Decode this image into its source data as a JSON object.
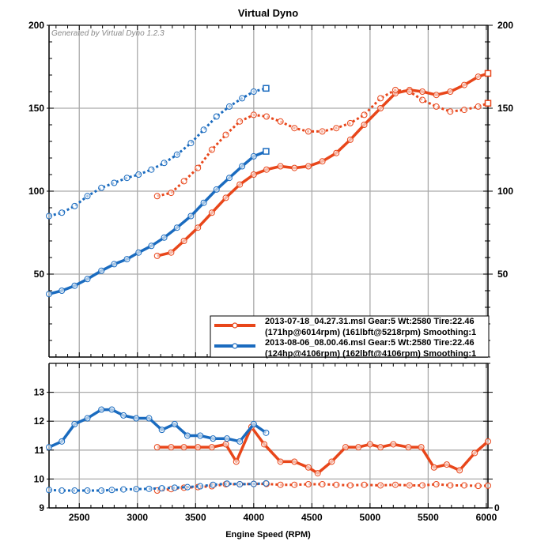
{
  "chart_data": [
    {
      "type": "line",
      "title": "Virtual Dyno",
      "watermark": "Generated by Virtual Dyno 1.2.3",
      "xlabel": "Engine Speed (RPM)",
      "ylabel": "",
      "xlim": [
        2240,
        6014
      ],
      "ylim": [
        0,
        200
      ],
      "yticks": [
        50,
        100,
        150,
        200
      ],
      "xticks": [
        2500,
        3000,
        3500,
        4000,
        4500,
        5000,
        5500,
        6000
      ],
      "grid": true,
      "legend_position": "bottom-right",
      "legend": [
        {
          "line1": "2013-07-18_04.27.31.msl Gear:5 Wt:2580 Tire:22.46",
          "line2": "(171hp@6014rpm) (161lbft@5218rpm) Smoothing:1",
          "color": "#e8461a"
        },
        {
          "line1": "2013-08-06_08.00.46.msl Gear:5 Wt:2580 Tire:22.46",
          "line2": "(124hp@4106rpm) (162lbft@4106rpm) Smoothing:1",
          "color": "#1a6bbf"
        }
      ],
      "series": [
        {
          "name": "run1-hp",
          "color": "#e8461a",
          "style": "solid",
          "x": [
            3170,
            3290,
            3400,
            3520,
            3640,
            3760,
            3880,
            4000,
            4110,
            4230,
            4350,
            4470,
            4590,
            4710,
            4830,
            4950,
            5090,
            5218,
            5340,
            5450,
            5570,
            5690,
            5810,
            5930,
            6014
          ],
          "y": [
            61,
            63,
            70,
            78,
            87,
            96,
            104,
            110,
            113,
            115,
            114,
            115,
            118,
            123,
            131,
            140,
            150,
            159,
            161,
            160,
            158,
            160,
            164,
            169,
            171
          ]
        },
        {
          "name": "run1-torque",
          "color": "#e8461a",
          "style": "dotted",
          "x": [
            3170,
            3290,
            3400,
            3520,
            3640,
            3760,
            3880,
            4000,
            4110,
            4230,
            4350,
            4470,
            4590,
            4710,
            4830,
            4950,
            5090,
            5218,
            5340,
            5450,
            5570,
            5690,
            5810,
            5930,
            6014
          ],
          "y": [
            97,
            99,
            106,
            114,
            125,
            134,
            142,
            146,
            145,
            142,
            138,
            136,
            136,
            138,
            141,
            146,
            156,
            161,
            160,
            155,
            151,
            148,
            149,
            151,
            153
          ]
        },
        {
          "name": "run2-hp",
          "color": "#1a6bbf",
          "style": "solid",
          "x": [
            2240,
            2350,
            2460,
            2570,
            2690,
            2800,
            2910,
            3010,
            3120,
            3230,
            3340,
            3460,
            3570,
            3680,
            3790,
            3900,
            4000,
            4106
          ],
          "y": [
            38,
            40,
            43,
            47,
            52,
            56,
            59,
            63,
            67,
            72,
            78,
            85,
            93,
            101,
            108,
            115,
            121,
            124
          ]
        },
        {
          "name": "run2-torque",
          "color": "#1a6bbf",
          "style": "dotted",
          "x": [
            2240,
            2350,
            2460,
            2570,
            2690,
            2800,
            2910,
            3010,
            3120,
            3230,
            3340,
            3460,
            3570,
            3680,
            3790,
            3900,
            4000,
            4106
          ],
          "y": [
            85,
            87,
            91,
            97,
            102,
            105,
            108,
            110,
            113,
            117,
            122,
            129,
            137,
            145,
            151,
            156,
            160,
            162
          ]
        }
      ]
    },
    {
      "type": "line",
      "xlabel": "Engine Speed (RPM)",
      "xlim": [
        2240,
        6014
      ],
      "ylim": [
        9,
        14
      ],
      "yticks": [
        9,
        10,
        11,
        12,
        13
      ],
      "right_axis_label": "0",
      "xticks": [
        2500,
        3000,
        3500,
        4000,
        4500,
        5000,
        5500,
        6000
      ],
      "grid": true,
      "series": [
        {
          "name": "run1-afr",
          "color": "#e8461a",
          "style": "solid",
          "x": [
            3170,
            3290,
            3400,
            3520,
            3640,
            3760,
            3850,
            3980,
            4090,
            4230,
            4350,
            4470,
            4550,
            4670,
            4790,
            4900,
            5000,
            5090,
            5200,
            5330,
            5440,
            5550,
            5660,
            5770,
            5900,
            6014
          ],
          "y": [
            11.1,
            11.1,
            11.1,
            11.1,
            11.1,
            11.2,
            10.6,
            11.8,
            11.2,
            10.6,
            10.6,
            10.4,
            10.2,
            10.6,
            11.1,
            11.1,
            11.2,
            11.1,
            11.2,
            11.1,
            11.1,
            10.4,
            10.5,
            10.3,
            10.9,
            11.3
          ]
        },
        {
          "name": "run1-boost",
          "color": "#e8461a",
          "style": "dotted",
          "x": [
            3170,
            3290,
            3400,
            3520,
            3640,
            3760,
            3880,
            4000,
            4110,
            4230,
            4350,
            4470,
            4590,
            4710,
            4830,
            4950,
            5090,
            5218,
            5340,
            5450,
            5570,
            5690,
            5810,
            5930,
            6014
          ],
          "y": [
            9.6,
            9.65,
            9.7,
            9.72,
            9.75,
            9.82,
            9.82,
            9.83,
            9.83,
            9.8,
            9.8,
            9.82,
            9.82,
            9.8,
            9.78,
            9.8,
            9.78,
            9.8,
            9.78,
            9.78,
            9.82,
            9.78,
            9.78,
            9.76,
            9.77
          ]
        },
        {
          "name": "run2-afr",
          "color": "#1a6bbf",
          "style": "solid",
          "x": [
            2240,
            2350,
            2460,
            2570,
            2690,
            2780,
            2880,
            2990,
            3100,
            3210,
            3320,
            3430,
            3540,
            3650,
            3770,
            3880,
            4000,
            4106
          ],
          "y": [
            11.1,
            11.3,
            11.9,
            12.1,
            12.4,
            12.4,
            12.2,
            12.1,
            12.1,
            11.7,
            11.9,
            11.5,
            11.5,
            11.4,
            11.4,
            11.3,
            11.9,
            11.6
          ]
        },
        {
          "name": "run2-boost",
          "color": "#1a6bbf",
          "style": "dotted",
          "x": [
            2240,
            2350,
            2460,
            2570,
            2690,
            2780,
            2880,
            2990,
            3100,
            3210,
            3320,
            3430,
            3540,
            3650,
            3770,
            3880,
            4000,
            4106
          ],
          "y": [
            9.62,
            9.6,
            9.6,
            9.6,
            9.6,
            9.62,
            9.64,
            9.65,
            9.66,
            9.68,
            9.7,
            9.72,
            9.75,
            9.8,
            9.84,
            9.82,
            9.83,
            9.85
          ]
        }
      ]
    }
  ]
}
